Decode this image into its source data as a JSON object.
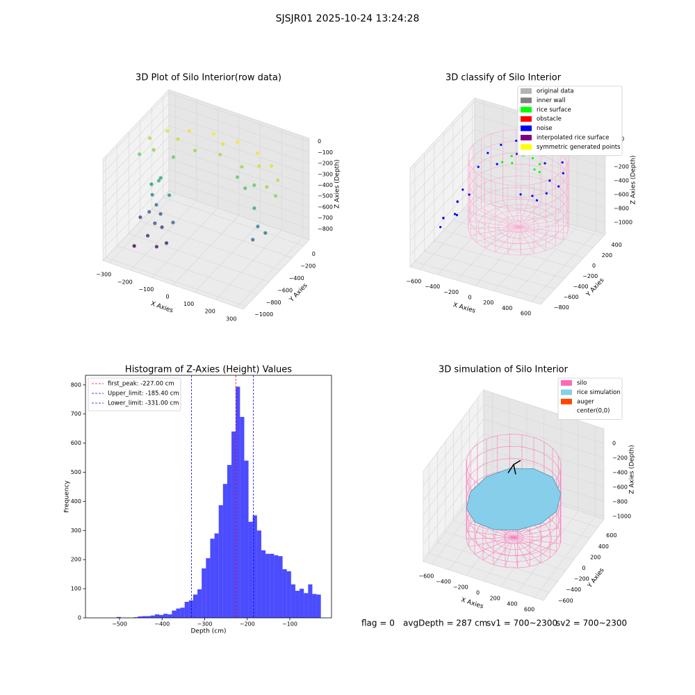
{
  "title": "SJSJR01 2025-10-24 13:24:28",
  "footer": [
    "flag = 0",
    "avgDepth = 287 cm",
    "sv1 = 700~2300",
    "sv2 = 700~2300"
  ],
  "chart_data": [
    {
      "type": "scatter3d",
      "title": "3D Plot of Silo Interior(row data)",
      "xlabel": "X Axies",
      "ylabel": "Y Axies",
      "zlabel": "Z Axies (Depth)",
      "colormap": "viridis",
      "xlim": [
        -330,
        330
      ],
      "ylim": [
        -1050,
        100
      ],
      "zlim": [
        -900,
        30
      ],
      "xticks": [
        {
          "value": -300,
          "label": "−300"
        },
        {
          "value": -200,
          "label": "−200"
        },
        {
          "value": -100,
          "label": "−100"
        },
        0,
        100,
        200,
        300
      ],
      "yticks": [
        {
          "value": -1000,
          "label": "−1000"
        },
        {
          "value": -800,
          "label": "−800"
        },
        {
          "value": -600,
          "label": "−600"
        },
        {
          "value": -400,
          "label": "−400"
        },
        {
          "value": -200,
          "label": "−200"
        },
        0
      ],
      "zticks": [
        {
          "value": -800,
          "label": "−800"
        },
        {
          "value": -700,
          "label": "−700"
        },
        {
          "value": -600,
          "label": "−600"
        },
        {
          "value": -500,
          "label": "−500"
        },
        {
          "value": -400,
          "label": "−400"
        },
        {
          "value": -300,
          "label": "−300"
        },
        {
          "value": -200,
          "label": "−200"
        },
        {
          "value": -100,
          "label": "−100"
        },
        0
      ],
      "points": {
        "x": [
          -320,
          -301,
          -245,
          -160,
          -56,
          56,
          160,
          245,
          301,
          320,
          -220,
          -190,
          -110,
          0,
          110,
          190,
          220,
          250,
          240,
          280,
          -250,
          -230,
          -200,
          -220,
          -180,
          -160,
          -200,
          -150,
          -250,
          -120,
          -180,
          -270,
          -100,
          -210,
          -150,
          -266,
          -191,
          0,
          191,
          266,
          150,
          100
        ],
        "y": [
          -450,
          -341,
          -244,
          -173,
          -135,
          -135,
          -173,
          -244,
          -341,
          -450,
          -450,
          -340,
          -260,
          -230,
          -260,
          -340,
          -450,
          -500,
          -550,
          -480,
          -500,
          -560,
          -600,
          -650,
          -700,
          -650,
          -750,
          -780,
          -800,
          -720,
          -600,
          -620,
          -680,
          -520,
          -560,
          -403,
          -259,
          -180,
          -259,
          -403,
          -350,
          -300
        ],
        "z": [
          -250,
          -150,
          -100,
          -80,
          -60,
          -60,
          -70,
          -90,
          -130,
          -200,
          -400,
          -250,
          -180,
          -160,
          -180,
          -250,
          -380,
          -500,
          -600,
          -550,
          -450,
          -500,
          -550,
          -600,
          -650,
          -700,
          -750,
          -800,
          -850,
          -780,
          -620,
          -700,
          -600,
          -380,
          -450,
          -200,
          -130,
          -90,
          -120,
          -180,
          -300,
          -260
        ]
      }
    },
    {
      "type": "scatter3d",
      "title": "3D classify of Silo Interior",
      "xlabel": "X Axies",
      "ylabel": "Y Axies",
      "zlabel": "Z Axies (Depth)",
      "legend_loc": "upper right",
      "xlim": [
        -700,
        700
      ],
      "ylim": [
        -900,
        450
      ],
      "zlim": [
        -1170,
        250
      ],
      "xticks": [
        {
          "value": -600,
          "label": "−600"
        },
        {
          "value": -400,
          "label": "−400"
        },
        {
          "value": -200,
          "label": "−200"
        },
        0,
        200,
        400,
        600
      ],
      "yticks": [
        {
          "value": -800,
          "label": "−800"
        },
        {
          "value": -600,
          "label": "−600"
        },
        {
          "value": -400,
          "label": "−400"
        },
        {
          "value": -200,
          "label": "−200"
        },
        0,
        200,
        400
      ],
      "zticks": [
        {
          "value": -1000,
          "label": "−1000"
        },
        {
          "value": -800,
          "label": "−800"
        },
        {
          "value": -600,
          "label": "−600"
        },
        {
          "value": -400,
          "label": "−400"
        },
        {
          "value": -200,
          "label": "−200"
        },
        0,
        200
      ],
      "series": [
        {
          "name": "original data",
          "color": "#b3b3b3"
        },
        {
          "name": "inner wall",
          "color": "#808080"
        },
        {
          "name": "rice surface",
          "color": "#00ff00",
          "x": [
            -200,
            -150,
            -50,
            50,
            150,
            200,
            120,
            -120
          ],
          "y": [
            50,
            150,
            200,
            200,
            150,
            50,
            100,
            100
          ],
          "z": [
            -180,
            -150,
            -140,
            -140,
            -150,
            -170,
            -200,
            -200
          ]
        },
        {
          "name": "obstacle",
          "color": "#ff0000"
        },
        {
          "name": "noise",
          "color": "#0000ff",
          "x": [
            -430,
            -404,
            -329,
            -215,
            -75,
            75,
            215,
            329,
            404,
            430,
            -282,
            -150,
            150,
            282,
            300,
            -500,
            -550,
            -600,
            -480,
            -650,
            -400,
            -520,
            -580,
            -450,
            200,
            300,
            100
          ],
          "y": [
            0,
            147,
            276,
            372,
            423,
            423,
            372,
            276,
            147,
            0,
            103,
            260,
            260,
            103,
            0,
            -300,
            -200,
            -400,
            -350,
            -300,
            -250,
            -150,
            -500,
            -450,
            -100,
            -200,
            -150
          ],
          "z": [
            -300,
            -200,
            -150,
            -120,
            -100,
            -100,
            -120,
            -150,
            -180,
            -250,
            -280,
            -200,
            -220,
            -300,
            -400,
            -600,
            -700,
            -800,
            -750,
            -900,
            -500,
            -550,
            -850,
            -650,
            -400,
            -350,
            -380
          ]
        },
        {
          "name": "interpolated rice surface",
          "color": "#800080"
        },
        {
          "name": "symmetric generated points",
          "color": "#ffff00"
        }
      ]
    },
    {
      "type": "histogram",
      "title": "Histogram of Z-Axies (Height) Values",
      "xlabel": "Depth (cm)",
      "ylabel": "Frequency",
      "color": "#0000ff",
      "alpha": 0.7,
      "legend_loc": "upper left",
      "xlim": [
        -580,
        -2
      ],
      "ylim": [
        0,
        833
      ],
      "xticks": [
        {
          "value": -500,
          "label": "−500"
        },
        {
          "value": -400,
          "label": "−400"
        },
        {
          "value": -300,
          "label": "−300"
        },
        {
          "value": -200,
          "label": "−200"
        },
        {
          "value": -100,
          "label": "−100"
        }
      ],
      "yticks": [
        0,
        100,
        200,
        300,
        400,
        500,
        600,
        700,
        800
      ],
      "bins": [
        -557,
        -547,
        -537,
        -527,
        -517,
        -507,
        -497,
        -487,
        -477,
        -467,
        -457,
        -447,
        -437,
        -427,
        -417,
        -407,
        -397,
        -387,
        -377,
        -367,
        -357,
        -347,
        -337,
        -327,
        -317,
        -307,
        -297,
        -287,
        -277,
        -267,
        -257,
        -247,
        -237,
        -227,
        -217,
        -207,
        -197,
        -187,
        -177,
        -167,
        -157,
        -147,
        -137,
        -127,
        -117,
        -107,
        -97,
        -87,
        -77,
        -67,
        -57,
        -47,
        -37,
        -27
      ],
      "counts": [
        0,
        0,
        0,
        0,
        0,
        3,
        0,
        0,
        0,
        2,
        5,
        6,
        6,
        8,
        12,
        10,
        14,
        12,
        25,
        32,
        35,
        55,
        60,
        80,
        98,
        170,
        205,
        272,
        290,
        387,
        460,
        525,
        640,
        794,
        690,
        540,
        330,
        352,
        300,
        232,
        220,
        220,
        215,
        212,
        167,
        160,
        115,
        93,
        100,
        85,
        115,
        82,
        80
      ],
      "lines": [
        {
          "label": "first_peak: -227.00 cm",
          "value": -227,
          "color": "#ff0000"
        },
        {
          "label": "Upper_limit: -185.40 cm",
          "value": -185.4,
          "color": "#0000ff"
        },
        {
          "label": "Lower_limit: -331.00 cm",
          "value": -331,
          "color": "#0000ff"
        }
      ]
    },
    {
      "type": "surface3d",
      "title": "3D simulation of Silo Interior",
      "xlabel": "X Axies",
      "ylabel": "Y Axies",
      "zlabel": "Z Axies (Depth)",
      "legend_loc": "upper right",
      "xlim": [
        -700,
        700
      ],
      "ylim": [
        -750,
        750
      ],
      "zlim": [
        -1040,
        200
      ],
      "xticks": [
        {
          "value": -600,
          "label": "−600"
        },
        {
          "value": -400,
          "label": "−400"
        },
        {
          "value": -200,
          "label": "−200"
        },
        0,
        200,
        400,
        600
      ],
      "yticks": [
        {
          "value": -600,
          "label": "−600"
        },
        {
          "value": -400,
          "label": "−400"
        },
        {
          "value": -200,
          "label": "−200"
        },
        0,
        200,
        400,
        600
      ],
      "zticks": [
        {
          "value": -1000,
          "label": "−1000"
        },
        {
          "value": -800,
          "label": "−800"
        },
        {
          "value": -600,
          "label": "−600"
        },
        {
          "value": -400,
          "label": "−400"
        },
        {
          "value": -200,
          "label": "−200"
        },
        0
      ],
      "legend": [
        {
          "name": "silo",
          "color": "#ff69b4"
        },
        {
          "name": "rice simulation",
          "color": "#87ceeb"
        },
        {
          "name": "auger",
          "color": "#ff4500"
        },
        {
          "name": "center(0,0)",
          "color": "#ffffff"
        }
      ],
      "surface": {
        "x": [
          500,
          433,
          250,
          0,
          -250,
          -433,
          -500,
          -433,
          -250,
          0,
          250,
          433
        ],
        "y": [
          0,
          250,
          433,
          500,
          433,
          250,
          0,
          -250,
          -433,
          -500,
          -433,
          -250
        ],
        "z": [
          -450,
          -420,
          -400,
          -430,
          -470,
          -520,
          -560,
          -580,
          -560,
          -520,
          -480,
          -460
        ]
      }
    }
  ]
}
